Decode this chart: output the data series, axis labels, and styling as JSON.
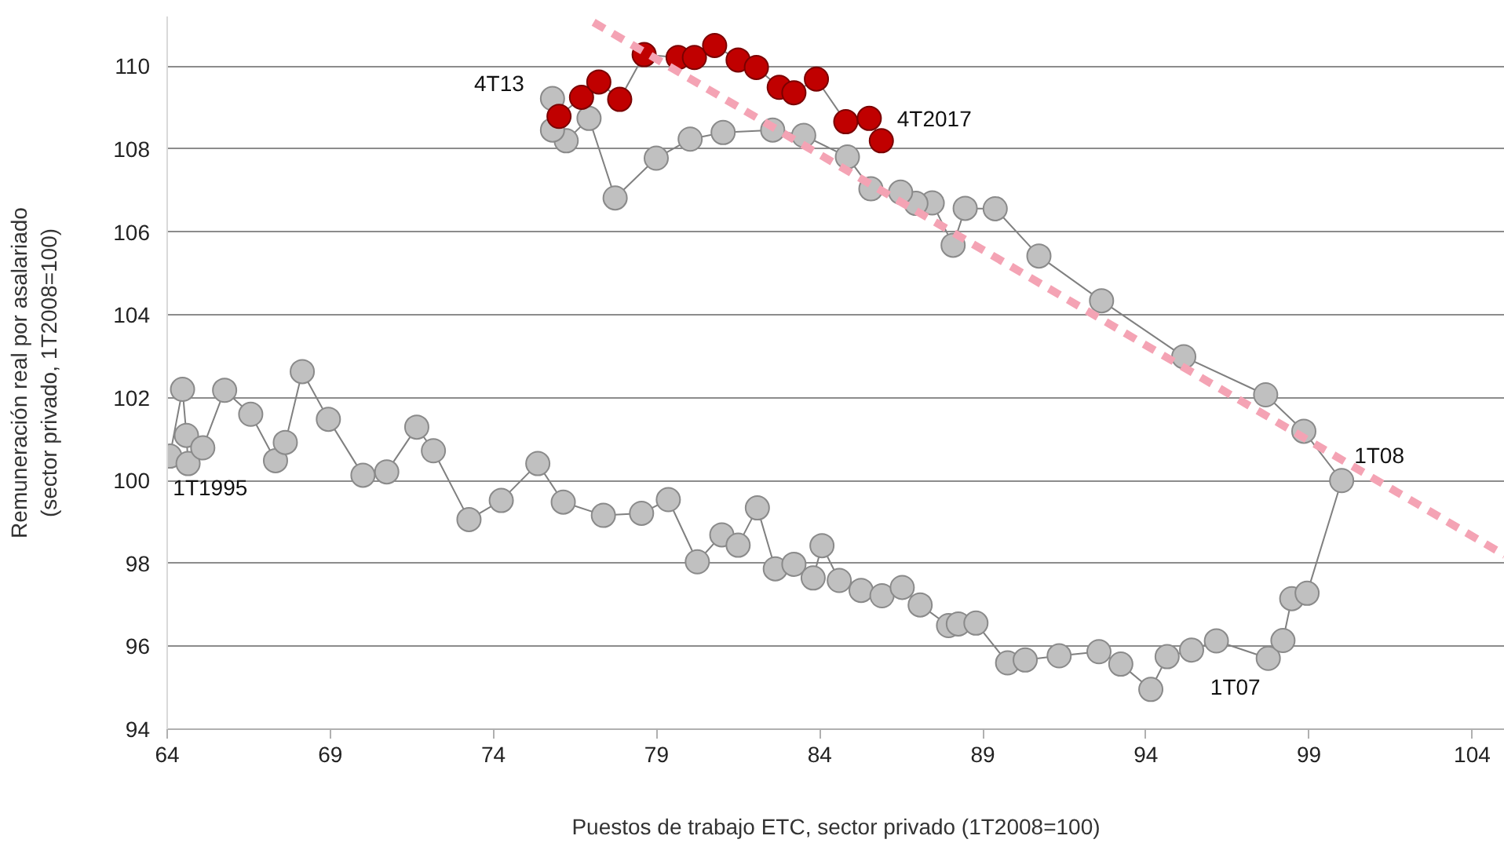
{
  "chart_data": {
    "type": "line",
    "xlabel": "Puestos de trabajo ETC, sector privado (1T2008=100)",
    "ylabel": "Remuneración real por asalariado\n(sector privado, 1T2008=100)",
    "xlim": [
      64,
      105
    ],
    "ylim": [
      94,
      111.2
    ],
    "xticks": [
      64,
      69,
      74,
      79,
      84,
      89,
      94,
      99,
      104
    ],
    "yticks": [
      94,
      96,
      98,
      100,
      102,
      104,
      106,
      108,
      110
    ],
    "grid": "y",
    "marker": "circle",
    "line_style": "solid",
    "series": [
      {
        "color": "#c0c0c0",
        "x": [
          64.08,
          64.47,
          64.59,
          64.64,
          65.09,
          65.76,
          66.56,
          67.32,
          67.62,
          68.14,
          68.94,
          70.0,
          70.73,
          71.65,
          72.16,
          73.25,
          74.24,
          75.36,
          76.14,
          77.37,
          78.54,
          79.36,
          80.25,
          81.0,
          81.5,
          82.09,
          82.64,
          83.21,
          83.8,
          84.07,
          84.6,
          85.27,
          85.91,
          86.53,
          87.08,
          87.95,
          88.25,
          88.79,
          89.76,
          90.3,
          91.34,
          92.56,
          93.23,
          94.15,
          94.65,
          95.4,
          96.16,
          97.75,
          98.2,
          98.47,
          98.94,
          100,
          98.84,
          97.67,
          95.16,
          92.64,
          90.72,
          89.38,
          88.46,
          88.09,
          87.45,
          86.95,
          86.48,
          85.57,
          84.85,
          83.51,
          82.56,
          81.04,
          80.03,
          78.99,
          77.73,
          76.93,
          76.23,
          75.81,
          75.81
        ],
        "values": [
          100.59,
          102.2,
          101.09,
          100.41,
          100.79,
          102.18,
          101.6,
          100.48,
          100.92,
          102.63,
          101.48,
          100.13,
          100.21,
          101.29,
          100.72,
          99.06,
          99.52,
          100.41,
          99.48,
          99.16,
          99.21,
          99.54,
          98.04,
          98.69,
          98.44,
          99.34,
          97.87,
          97.98,
          97.65,
          98.43,
          97.59,
          97.35,
          97.22,
          97.42,
          97.0,
          96.5,
          96.54,
          96.56,
          95.6,
          95.67,
          95.77,
          95.87,
          95.57,
          94.96,
          95.75,
          95.91,
          96.13,
          95.71,
          96.14,
          97.15,
          97.28,
          100,
          101.19,
          102.07,
          102.99,
          104.34,
          105.42,
          106.56,
          106.57,
          105.68,
          106.7,
          106.69,
          106.96,
          107.04,
          107.81,
          108.33,
          108.46,
          108.4,
          108.24,
          107.78,
          106.82,
          108.74,
          108.2,
          108.46,
          109.22
        ]
      },
      {
        "color": "#c00000",
        "x": [
          76.01,
          76.7,
          77.23,
          77.87,
          78.62,
          79.66,
          80.16,
          80.78,
          81.5,
          82.06,
          82.76,
          83.21,
          83.9,
          84.8,
          85.52,
          85.89
        ],
        "values": [
          108.79,
          109.25,
          109.62,
          109.2,
          110.28,
          110.21,
          110.21,
          110.5,
          110.15,
          109.97,
          109.49,
          109.36,
          109.69,
          108.66,
          108.74,
          108.2
        ]
      },
      {
        "color": "#f4a3b4",
        "marker": "none",
        "line_style": "dashed",
        "x": [
          77.07,
          105
        ],
        "values": [
          111.06,
          98.2
        ]
      }
    ],
    "annotations": [
      {
        "text": "1T1995",
        "x": 64.08,
        "y": 100.59
      },
      {
        "text": "4T13",
        "x": 75.81,
        "y": 109.22
      },
      {
        "text": "4T2017",
        "x": 85.89,
        "y": 108.2
      },
      {
        "text": "1T08",
        "x": 100,
        "y": 100
      },
      {
        "text": "1T07",
        "x": 97.75,
        "y": 95.71
      }
    ]
  }
}
